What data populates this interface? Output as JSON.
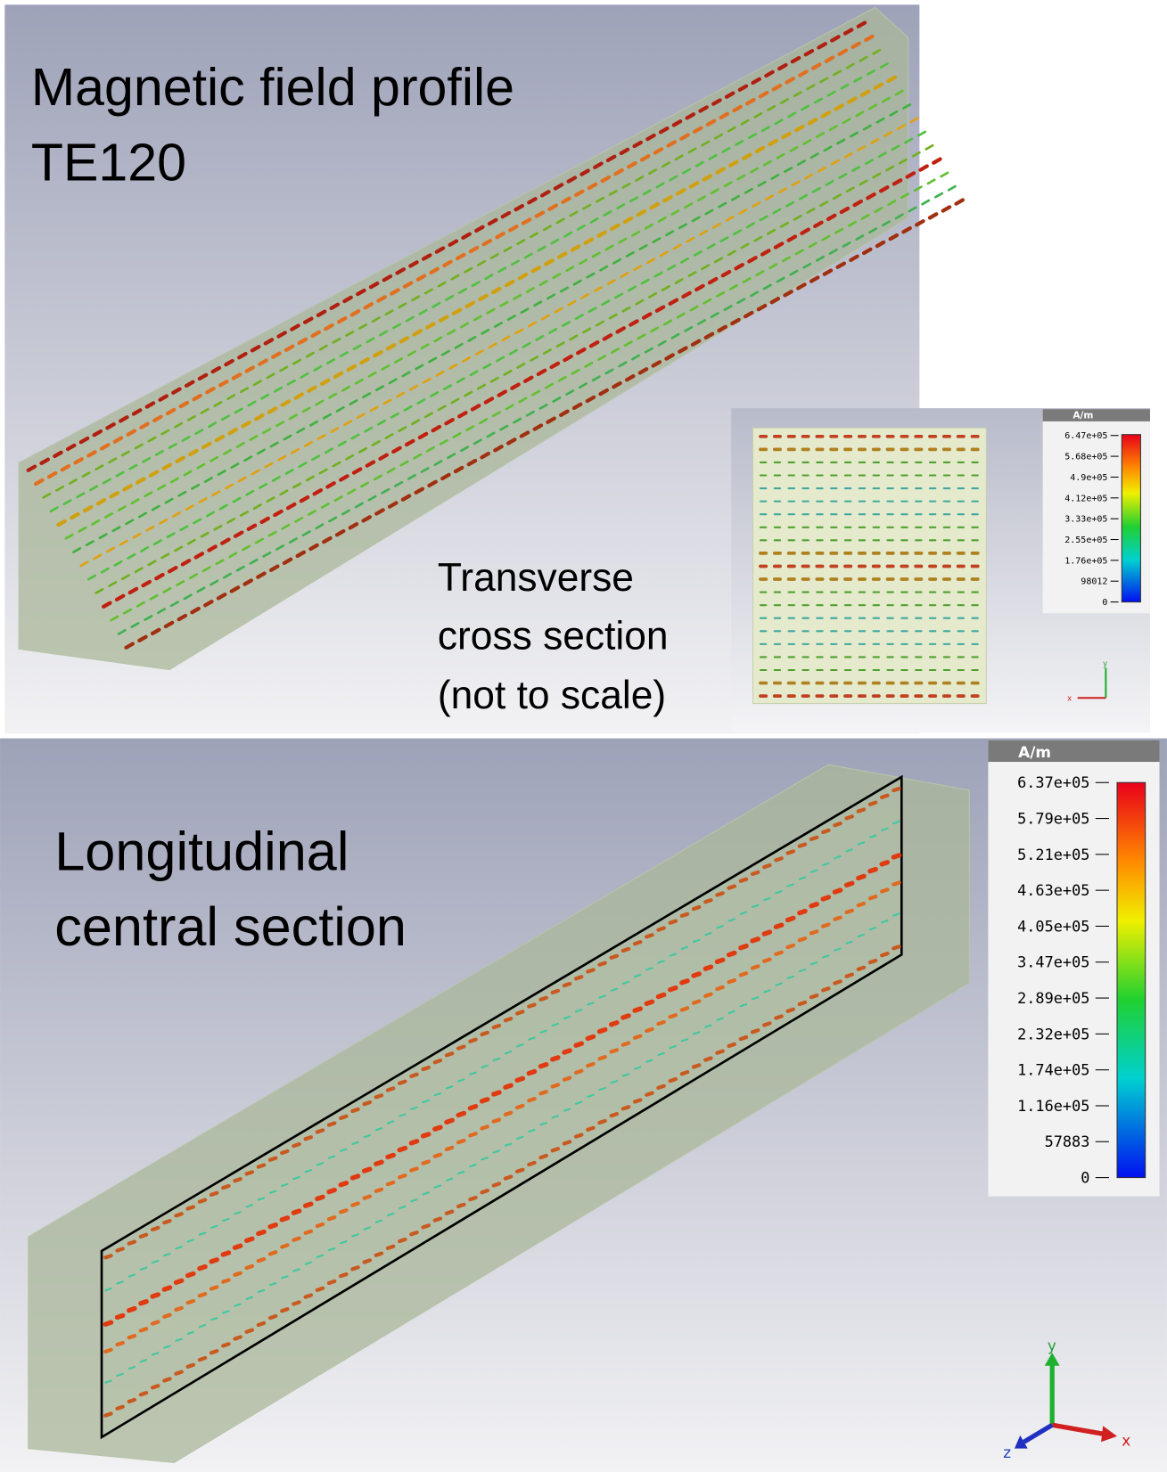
{
  "top_panel": {
    "title": [
      "Magnetic field profile",
      "TE120"
    ],
    "inset_caption": [
      "Transverse",
      "cross section",
      "(not to scale)"
    ],
    "legend": {
      "unit": "A/m",
      "labels": [
        "6.47e+05",
        "5.68e+05",
        "4.9e+05",
        "4.12e+05",
        "3.33e+05",
        "2.55e+05",
        "1.76e+05",
        "98012",
        "0"
      ]
    },
    "axes": {
      "y": "y",
      "x": "x"
    }
  },
  "bottom_panel": {
    "title": [
      "Longitudinal",
      "central section"
    ],
    "legend": {
      "unit": "A/m",
      "labels": [
        "6.37e+05",
        "5.79e+05",
        "5.21e+05",
        "4.63e+05",
        "4.05e+05",
        "3.47e+05",
        "2.89e+05",
        "2.32e+05",
        "1.74e+05",
        "1.16e+05",
        "57883",
        "0"
      ]
    },
    "axes": {
      "y": "y",
      "x": "x",
      "z": "z"
    }
  }
}
